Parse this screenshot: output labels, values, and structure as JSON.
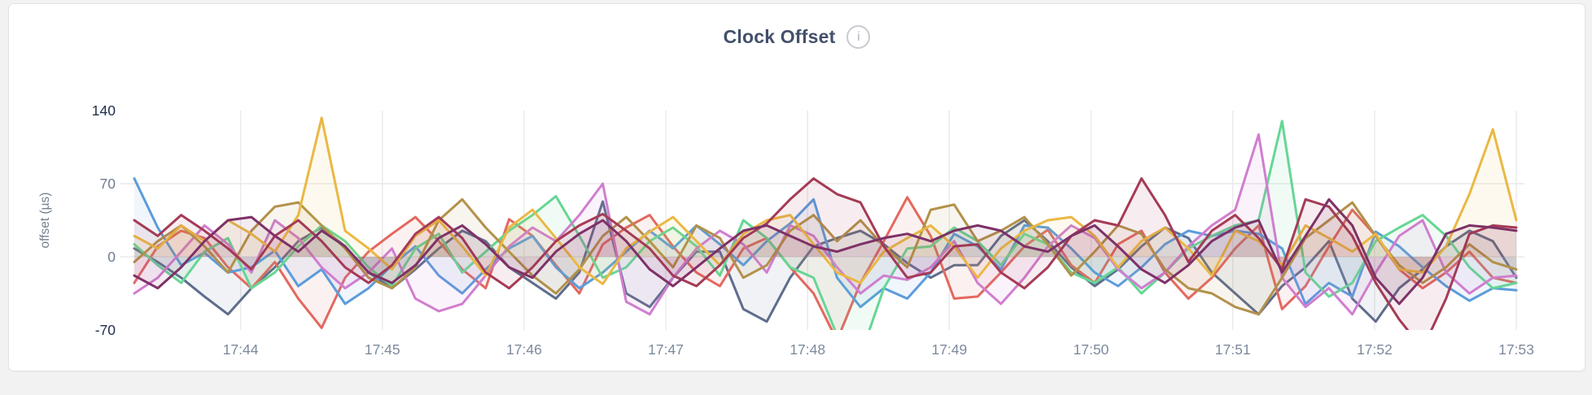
{
  "page": {
    "background_color": "#f2f2f3"
  },
  "card": {
    "background_color": "#ffffff",
    "border_color": "#e3e4e6"
  },
  "header": {
    "title": "Clock Offset",
    "info_icon_glyph": "i"
  },
  "chart_data": {
    "type": "line",
    "title": "Clock Offset",
    "xlabel": "",
    "ylabel": "offset (µs)",
    "ylim": [
      -70,
      140
    ],
    "x_start": "17:43:15",
    "x_end": "17:53:00",
    "x_step_seconds": 10,
    "grid": {
      "vertical": true,
      "horizontal": true
    },
    "legend_position": "none",
    "area_baseline": 0,
    "fill_opacity": 0.09,
    "grid_color": "#e9e9e9",
    "tick_color": "#7d8a9c",
    "y_tick_color": "#6e7c91",
    "y_tick_emphasized_color": "#1e2c4d",
    "axis_title_color": "#74808f",
    "y_ticks": [
      {
        "label": "140",
        "value": 140,
        "emphasized": true,
        "gridline": false
      },
      {
        "label": "70",
        "value": 70,
        "emphasized": false,
        "gridline": true
      },
      {
        "label": "0",
        "value": 0,
        "emphasized": false,
        "gridline": true
      },
      {
        "label": "-70",
        "value": -70,
        "emphasized": true,
        "gridline": false
      }
    ],
    "x_ticks": [
      "17:44",
      "17:45",
      "17:46",
      "17:47",
      "17:48",
      "17:49",
      "17:50",
      "17:51",
      "17:52",
      "17:53"
    ],
    "series": [
      {
        "name": "slate",
        "color": "#5E6D8C",
        "values": [
          8,
          -5,
          -20,
          -38,
          -55,
          -30,
          -10,
          15,
          28,
          10,
          -15,
          -30,
          -12,
          8,
          25,
          15,
          -10,
          -25,
          -40,
          -15,
          53,
          -35,
          -48,
          -20,
          5,
          5,
          -50,
          -62,
          -20,
          10,
          18,
          25,
          12,
          -6,
          -20,
          -8,
          -8,
          20,
          35,
          15,
          -10,
          -28,
          -12,
          10,
          28,
          18,
          -15,
          -35,
          -55,
          -28,
          -10,
          15,
          -40,
          -62,
          -30,
          -12,
          10,
          25,
          15,
          -20
        ]
      },
      {
        "name": "salmon",
        "color": "#E3685F",
        "values": [
          -25,
          10,
          25,
          18,
          -10,
          -30,
          -5,
          -40,
          -68,
          -20,
          5,
          22,
          38,
          15,
          -12,
          -30,
          36,
          20,
          -8,
          -35,
          12,
          28,
          40,
          10,
          -15,
          -28,
          8,
          18,
          -10,
          -35,
          -80,
          -25,
          15,
          57,
          20,
          -40,
          -38,
          -15,
          10,
          26,
          -8,
          -25,
          12,
          25,
          -15,
          -40,
          -20,
          8,
          30,
          -50,
          -28,
          10,
          45,
          20,
          -12,
          -30,
          -15,
          5,
          -20,
          -25
        ]
      },
      {
        "name": "blue",
        "color": "#5C9CDB",
        "values": [
          75,
          28,
          -8,
          4,
          -15,
          -10,
          6,
          -28,
          -12,
          -45,
          -30,
          -8,
          10,
          -18,
          -35,
          -12,
          8,
          20,
          -10,
          -30,
          -15,
          5,
          25,
          8,
          30,
          12,
          -8,
          15,
          32,
          55,
          -20,
          -48,
          -30,
          -40,
          -15,
          22,
          10,
          -12,
          30,
          28,
          8,
          -15,
          -28,
          -10,
          12,
          25,
          20,
          25,
          22,
          8,
          -45,
          -25,
          -38,
          24,
          10,
          -10,
          -28,
          -42,
          -30,
          -32
        ]
      },
      {
        "name": "green",
        "color": "#66D695",
        "values": [
          12,
          -8,
          -25,
          5,
          18,
          -30,
          -15,
          10,
          30,
          15,
          -10,
          -28,
          8,
          22,
          -15,
          5,
          25,
          40,
          58,
          20,
          -20,
          -10,
          15,
          28,
          10,
          -18,
          35,
          18,
          -10,
          -20,
          -75,
          -95,
          -30,
          8,
          10,
          28,
          15,
          -8,
          22,
          12,
          -15,
          -25,
          -10,
          -35,
          -15,
          8,
          20,
          30,
          35,
          130,
          -15,
          -38,
          -25,
          15,
          28,
          40,
          20,
          -10,
          -30,
          -25
        ]
      },
      {
        "name": "orchid",
        "color": "#D07ECF",
        "values": [
          -35,
          -20,
          5,
          30,
          12,
          -15,
          35,
          18,
          -10,
          -30,
          -15,
          8,
          -40,
          -52,
          -45,
          -18,
          10,
          28,
          15,
          40,
          70,
          -43,
          -55,
          -20,
          8,
          25,
          12,
          -15,
          30,
          20,
          -10,
          -35,
          -18,
          -22,
          -10,
          15,
          -25,
          -45,
          -20,
          10,
          30,
          18,
          -12,
          -30,
          -15,
          10,
          30,
          45,
          117,
          -20,
          -48,
          -30,
          -55,
          -15,
          20,
          35,
          -15,
          -35,
          -20,
          -18
        ]
      },
      {
        "name": "khaki",
        "color": "#B2914A",
        "values": [
          -5,
          15,
          30,
          10,
          -15,
          25,
          48,
          52,
          30,
          8,
          -20,
          -30,
          -10,
          35,
          55,
          28,
          5,
          -18,
          -35,
          -12,
          20,
          38,
          15,
          -10,
          30,
          18,
          -20,
          -8,
          25,
          40,
          15,
          35,
          10,
          -10,
          45,
          50,
          15,
          25,
          38,
          12,
          -18,
          5,
          30,
          22,
          -12,
          -30,
          -35,
          -48,
          -55,
          -20,
          18,
          35,
          52,
          20,
          -8,
          -25,
          -10,
          12,
          -5,
          -12
        ]
      },
      {
        "name": "gold",
        "color": "#EAB844",
        "values": [
          20,
          8,
          30,
          15,
          35,
          22,
          5,
          40,
          133,
          25,
          8,
          -12,
          20,
          35,
          10,
          -18,
          28,
          45,
          18,
          -10,
          -26,
          8,
          24,
          38,
          15,
          -8,
          22,
          35,
          40,
          12,
          -15,
          -25,
          5,
          18,
          30,
          10,
          -20,
          8,
          25,
          35,
          38,
          20,
          -10,
          15,
          28,
          8,
          -18,
          25,
          15,
          -8,
          30,
          18,
          5,
          22,
          -12,
          -15,
          10,
          60,
          122,
          35
        ]
      },
      {
        "name": "maroon",
        "color": "#A53B55",
        "values": [
          35,
          20,
          40,
          25,
          8,
          -12,
          20,
          35,
          15,
          -10,
          -25,
          -8,
          22,
          38,
          18,
          -15,
          -30,
          -10,
          15,
          30,
          41,
          25,
          8,
          -18,
          -28,
          -8,
          18,
          32,
          55,
          75,
          60,
          52,
          10,
          -20,
          -15,
          10,
          12,
          -15,
          -30,
          -10,
          20,
          35,
          30,
          75,
          40,
          -5,
          25,
          40,
          18,
          -12,
          55,
          48,
          20,
          -25,
          -60,
          -88,
          -40,
          22,
          30,
          28
        ]
      },
      {
        "name": "plum",
        "color": "#7E3167",
        "values": [
          -18,
          -30,
          -10,
          15,
          35,
          38,
          20,
          5,
          25,
          10,
          -15,
          -25,
          -8,
          18,
          30,
          12,
          -10,
          -20,
          5,
          22,
          35,
          15,
          -12,
          -28,
          -10,
          8,
          25,
          30,
          20,
          10,
          5,
          12,
          18,
          22,
          15,
          25,
          30,
          25,
          10,
          5,
          20,
          30,
          10,
          -12,
          -25,
          -8,
          15,
          28,
          35,
          -15,
          20,
          55,
          30,
          -20,
          -45,
          -20,
          22,
          30,
          28,
          25
        ]
      }
    ]
  }
}
